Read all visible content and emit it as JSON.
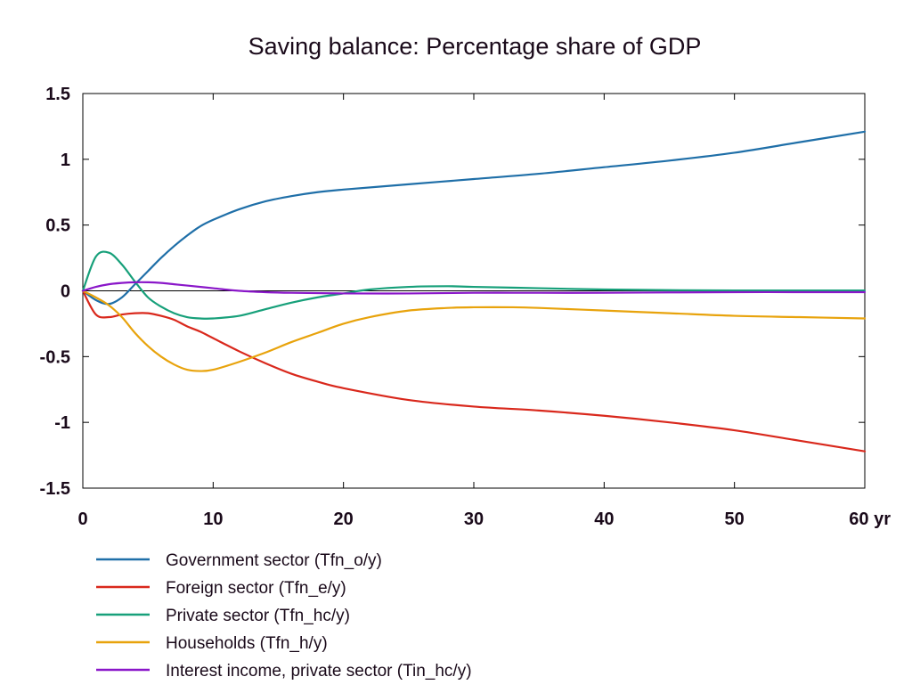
{
  "chart_data": {
    "type": "line",
    "title": "Saving balance: Percentage share of GDP",
    "x_tick_labels": [
      "0",
      "10",
      "20",
      "30",
      "40",
      "50",
      "60 yr"
    ],
    "x_ticks": [
      0,
      10,
      20,
      30,
      40,
      50,
      60
    ],
    "y_tick_labels": [
      "1.5",
      "1",
      "0.5",
      "0",
      "-0.5",
      "-1",
      "-1.5"
    ],
    "y_ticks": [
      1.5,
      1,
      0.5,
      0,
      -0.5,
      -1,
      -1.5
    ],
    "xlim": [
      0,
      60
    ],
    "ylim": [
      -1.5,
      1.5
    ],
    "zero_line": true,
    "grid": false,
    "legend_position": "bottom-left",
    "series": [
      {
        "name": "Government sector (Tfn_o/y)",
        "color": "#1f6fa8",
        "x": [
          0,
          1,
          2,
          3,
          4,
          5,
          6,
          7,
          8,
          9,
          10,
          12,
          14,
          16,
          18,
          20,
          25,
          30,
          35,
          40,
          45,
          50,
          55,
          60
        ],
        "y": [
          0,
          -0.07,
          -0.1,
          -0.05,
          0.05,
          0.15,
          0.25,
          0.34,
          0.42,
          0.49,
          0.54,
          0.62,
          0.68,
          0.72,
          0.75,
          0.77,
          0.81,
          0.85,
          0.89,
          0.94,
          0.99,
          1.05,
          1.13,
          1.21
        ]
      },
      {
        "name": "Foreign sector (Tfn_e/y)",
        "color": "#d9281c",
        "x": [
          0,
          1,
          2,
          3,
          4,
          5,
          6,
          7,
          8,
          9,
          10,
          12,
          14,
          16,
          18,
          20,
          25,
          30,
          35,
          40,
          45,
          50,
          55,
          60
        ],
        "y": [
          0,
          -0.18,
          -0.2,
          -0.18,
          -0.17,
          -0.17,
          -0.19,
          -0.22,
          -0.27,
          -0.31,
          -0.36,
          -0.46,
          -0.55,
          -0.63,
          -0.69,
          -0.74,
          -0.83,
          -0.88,
          -0.91,
          -0.95,
          -1.0,
          -1.06,
          -1.14,
          -1.22
        ]
      },
      {
        "name": "Private sector (Tfn_hc/y)",
        "color": "#17a07a",
        "x": [
          0,
          1,
          2,
          3,
          4,
          5,
          6,
          7,
          8,
          9,
          10,
          12,
          14,
          16,
          18,
          20,
          22,
          25,
          28,
          30,
          35,
          40,
          45,
          50,
          55,
          60
        ],
        "y": [
          0,
          0.26,
          0.29,
          0.2,
          0.07,
          -0.05,
          -0.12,
          -0.17,
          -0.2,
          -0.21,
          -0.21,
          -0.19,
          -0.14,
          -0.09,
          -0.05,
          -0.02,
          0.01,
          0.03,
          0.035,
          0.03,
          0.02,
          0.01,
          0.005,
          0.003,
          0.003,
          0.003
        ]
      },
      {
        "name": "Households (Tfn_h/y)",
        "color": "#e8a30c",
        "x": [
          0,
          1,
          2,
          3,
          4,
          5,
          6,
          7,
          8,
          9,
          10,
          12,
          14,
          16,
          18,
          20,
          22,
          25,
          28,
          30,
          33,
          35,
          40,
          45,
          50,
          55,
          60
        ],
        "y": [
          0,
          -0.05,
          -0.11,
          -0.2,
          -0.32,
          -0.42,
          -0.5,
          -0.56,
          -0.6,
          -0.61,
          -0.6,
          -0.54,
          -0.47,
          -0.39,
          -0.32,
          -0.25,
          -0.2,
          -0.15,
          -0.13,
          -0.125,
          -0.125,
          -0.13,
          -0.15,
          -0.17,
          -0.19,
          -0.2,
          -0.21
        ]
      },
      {
        "name": "Interest income, private sector (Tin_hc/y)",
        "color": "#8a17c9",
        "x": [
          0,
          1,
          2,
          3,
          4,
          5,
          6,
          7,
          8,
          10,
          12,
          14,
          16,
          20,
          25,
          30,
          35,
          40,
          45,
          50,
          55,
          60
        ],
        "y": [
          0,
          0.03,
          0.05,
          0.06,
          0.065,
          0.065,
          0.06,
          0.05,
          0.04,
          0.02,
          0.0,
          -0.01,
          -0.015,
          -0.02,
          -0.02,
          -0.015,
          -0.015,
          -0.015,
          -0.012,
          -0.01,
          -0.01,
          -0.01
        ]
      }
    ]
  }
}
